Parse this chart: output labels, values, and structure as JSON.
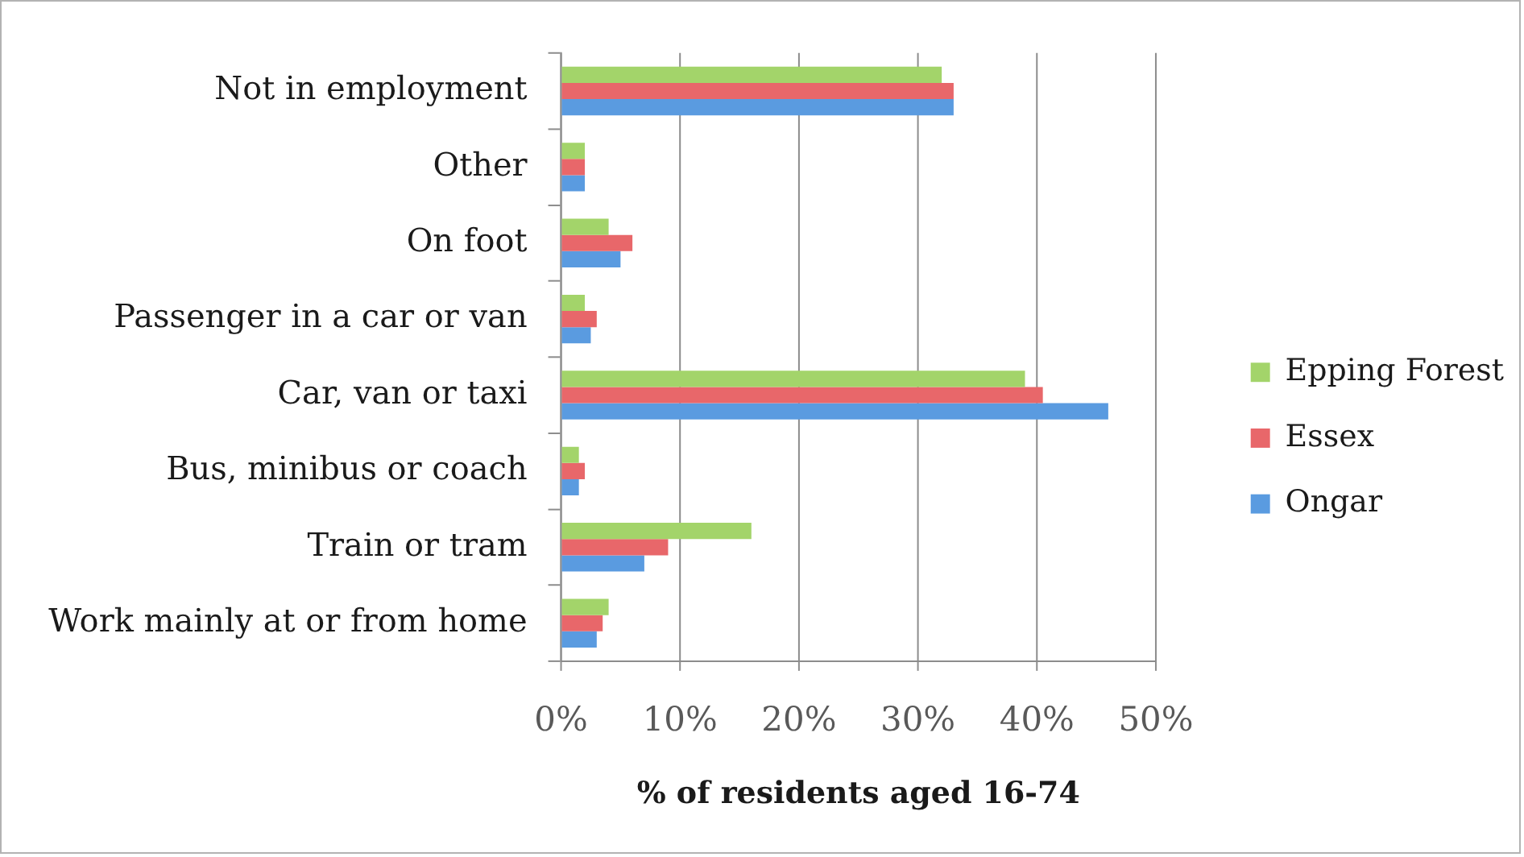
{
  "chart_data": {
    "type": "bar",
    "orientation": "horizontal",
    "xlabel": "% of residents aged 16-74",
    "categories": [
      "Not in employment",
      "Other",
      "On foot",
      "Passenger in a car or van",
      "Car, van or taxi",
      "Bus, minibus or coach",
      "Train or tram",
      "Work mainly at or from home"
    ],
    "series": [
      {
        "name": "Epping Forest",
        "color": "#a3d46a",
        "values": [
          32,
          2,
          4,
          2,
          39,
          1.5,
          16,
          4
        ]
      },
      {
        "name": "Essex",
        "color": "#e8676a",
        "values": [
          33,
          2,
          6,
          3,
          40.5,
          2,
          9,
          3.5
        ]
      },
      {
        "name": "Ongar",
        "color": "#5a9be0",
        "values": [
          33,
          2,
          5,
          2.5,
          46,
          1.5,
          7,
          3
        ]
      }
    ],
    "xlim": [
      0,
      50
    ],
    "xticks": [
      {
        "value": 0,
        "label": "0%"
      },
      {
        "value": 10,
        "label": "10%"
      },
      {
        "value": 20,
        "label": "20%"
      },
      {
        "value": 30,
        "label": "30%"
      },
      {
        "value": 40,
        "label": "40%"
      },
      {
        "value": 50,
        "label": "50%"
      }
    ],
    "grid": "x",
    "legend": "right"
  }
}
